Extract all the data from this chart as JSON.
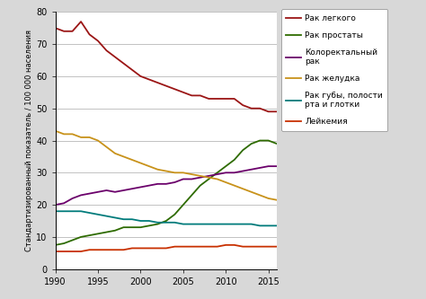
{
  "years": [
    1990,
    1991,
    1992,
    1993,
    1994,
    1995,
    1996,
    1997,
    1998,
    1999,
    2000,
    2001,
    2002,
    2003,
    2004,
    2005,
    2006,
    2007,
    2008,
    2009,
    2010,
    2011,
    2012,
    2013,
    2014,
    2015,
    2016
  ],
  "rak_legkogo": [
    75,
    74,
    74,
    77,
    73,
    71,
    68,
    66,
    64,
    62,
    60,
    59,
    58,
    57,
    56,
    55,
    54,
    54,
    53,
    53,
    53,
    53,
    51,
    50,
    50,
    49,
    49
  ],
  "rak_prostaty": [
    7.5,
    8,
    9,
    10,
    10.5,
    11,
    11.5,
    12,
    13,
    13,
    13,
    13.5,
    14,
    15,
    17,
    20,
    23,
    26,
    28,
    30,
    32,
    34,
    37,
    39,
    40,
    40,
    39
  ],
  "kolorektalny": [
    20,
    20.5,
    22,
    23,
    23.5,
    24,
    24.5,
    24,
    24.5,
    25,
    25.5,
    26,
    26.5,
    26.5,
    27,
    28,
    28,
    28.5,
    29,
    29.5,
    30,
    30,
    30.5,
    31,
    31.5,
    32,
    32
  ],
  "rak_zheludka": [
    43,
    42,
    42,
    41,
    41,
    40,
    38,
    36,
    35,
    34,
    33,
    32,
    31,
    30.5,
    30,
    30,
    29.5,
    29,
    28.5,
    28,
    27,
    26,
    25,
    24,
    23,
    22,
    21.5
  ],
  "rak_guby": [
    18,
    18,
    18,
    18,
    17.5,
    17,
    16.5,
    16,
    15.5,
    15.5,
    15,
    15,
    14.5,
    14.5,
    14.5,
    14,
    14,
    14,
    14,
    14,
    14,
    14,
    14,
    14,
    13.5,
    13.5,
    13.5
  ],
  "leykemiya": [
    5.5,
    5.5,
    5.5,
    5.5,
    6,
    6,
    6,
    6,
    6,
    6.5,
    6.5,
    6.5,
    6.5,
    6.5,
    7,
    7,
    7,
    7,
    7,
    7,
    7.5,
    7.5,
    7,
    7,
    7,
    7,
    7
  ],
  "colors": {
    "rak_legkogo": "#9B1515",
    "rak_prostaty": "#2E6B00",
    "kolorektalny": "#6B006B",
    "rak_zheludka": "#C8921A",
    "rak_guby": "#007B7B",
    "leykemiya": "#C83000"
  },
  "legend_labels": {
    "rak_legkogo": "Рак легкого",
    "rak_prostaty": "Рак простаты",
    "kolorektalny": "Колоректальный\nрак",
    "rak_zheludka": "Рак желудка",
    "rak_guby": "Рак губы, полости\nрта и глотки",
    "leykemiya": "Лейкемия"
  },
  "ylabel": "Стандартизированный показатель / 100 000 населения",
  "ylim": [
    0,
    80
  ],
  "xlim": [
    1990,
    2016
  ],
  "xticks": [
    1990,
    1995,
    2000,
    2005,
    2010,
    2015
  ],
  "yticks": [
    0,
    10,
    20,
    30,
    40,
    50,
    60,
    70,
    80
  ],
  "plot_bg": "#ffffff",
  "fig_bg": "#d8d8d8",
  "linewidth": 1.3
}
